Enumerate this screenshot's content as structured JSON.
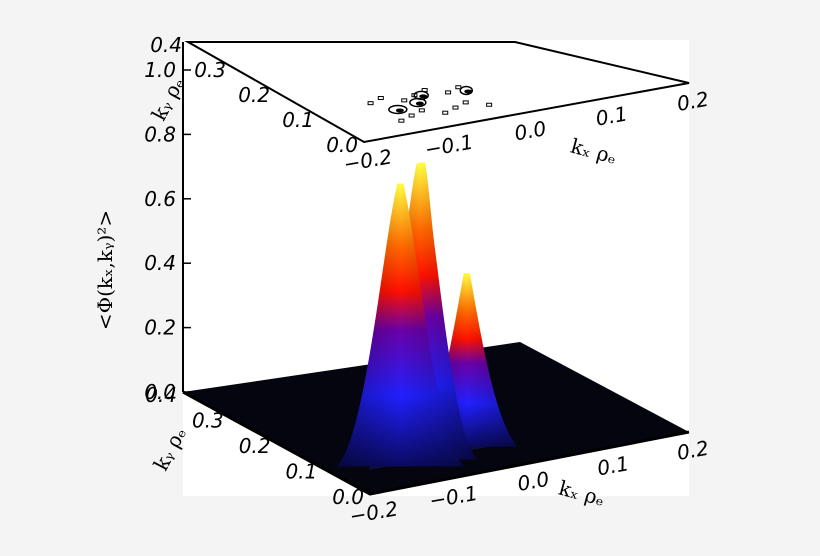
{
  "chart_data": {
    "type": "surface",
    "title": "",
    "zlabel": "<Φ(kₓ,kᵧ)²>",
    "xlabel": "kₓ ρₑ",
    "ylabel": "kᵧ ρₑ",
    "zlim": [
      0.0,
      1.0
    ],
    "xlim": [
      -0.2,
      0.2
    ],
    "ylim": [
      0.0,
      0.4
    ],
    "z_ticks": [
      "0.0",
      "0.2",
      "0.4",
      "0.6",
      "0.8",
      "1.0"
    ],
    "x_ticks": [
      "−0.2",
      "−0.1",
      "0.0",
      "0.1",
      "0.2"
    ],
    "y_ticks": [
      "0.0",
      "0.1",
      "0.2",
      "0.3",
      "0.4"
    ],
    "colormap": [
      "#000010",
      "#0000ff",
      "#ff0000",
      "#ffff00"
    ],
    "peaks": [
      {
        "kx": -0.115,
        "ky": 0.08,
        "value": 0.86
      },
      {
        "kx": -0.085,
        "ky": 0.09,
        "value": 0.9
      },
      {
        "kx": -0.07,
        "ky": 0.11,
        "value": 0.88
      },
      {
        "kx": -0.02,
        "ky": 0.1,
        "value": 0.52
      }
    ],
    "grid": false
  }
}
